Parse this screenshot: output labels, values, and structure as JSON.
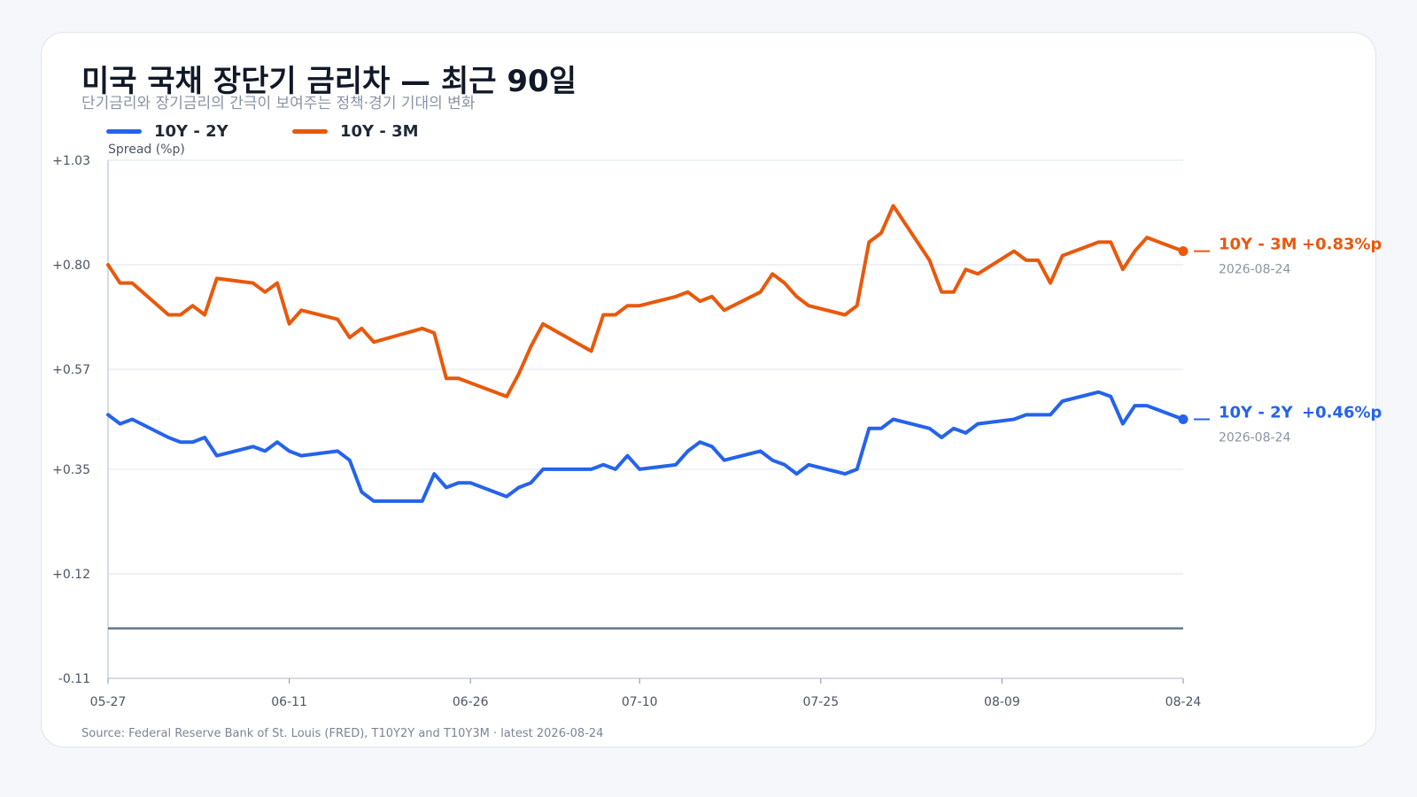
{
  "title": "미국 국채 장단기 금리차 — 최근 90일",
  "subtitle": "단기금리와 장기금리의 간극이 보여주는 정책·경기 기대의 변화",
  "source": "Source: Federal Reserve Bank of St. Louis (FRED), T10Y2Y and T10Y3M · latest 2026-08-24",
  "legend": [
    {
      "label": "10Y - 2Y",
      "color": "#2563eb"
    },
    {
      "label": "10Y - 3M",
      "color": "#e8590c"
    }
  ],
  "end_labels": [
    {
      "name": "10Y - 2Y",
      "value": "+0.46%p",
      "date": "2026-08-24",
      "color": "#2563eb"
    },
    {
      "name": "10Y - 3M",
      "value": "+0.83%p",
      "date": "2026-08-24",
      "color": "#e8590c"
    }
  ],
  "chart_data": {
    "type": "line",
    "ylabel": "Spread (%p)",
    "ylim": [
      -0.11,
      1.03
    ],
    "yticks": [
      "+1.03",
      "+0.80",
      "+0.57",
      "+0.35",
      "+0.12",
      "-0.11"
    ],
    "ytick_values": [
      1.03,
      0.8,
      0.57,
      0.35,
      0.12,
      -0.11
    ],
    "xlim": [
      "2026-05-27",
      "2026-08-24"
    ],
    "xticks": [
      "05-27",
      "06-11",
      "06-26",
      "07-10",
      "07-25",
      "08-09",
      "08-24"
    ],
    "xtick_dates": [
      "2026-05-27",
      "2026-06-11",
      "2026-06-26",
      "2026-07-10",
      "2026-07-25",
      "2026-08-09",
      "2026-08-24"
    ],
    "reference_line": 0.0,
    "grid": true,
    "legend_position": "top-left",
    "series": [
      {
        "name": "10Y - 2Y",
        "color": "#2563eb",
        "points": [
          [
            "2026-05-27",
            0.47
          ],
          [
            "2026-05-28",
            0.45
          ],
          [
            "2026-05-29",
            0.46
          ],
          [
            "2026-06-01",
            0.42
          ],
          [
            "2026-06-02",
            0.41
          ],
          [
            "2026-06-03",
            0.41
          ],
          [
            "2026-06-04",
            0.42
          ],
          [
            "2026-06-05",
            0.38
          ],
          [
            "2026-06-08",
            0.4
          ],
          [
            "2026-06-09",
            0.39
          ],
          [
            "2026-06-10",
            0.41
          ],
          [
            "2026-06-11",
            0.39
          ],
          [
            "2026-06-12",
            0.38
          ],
          [
            "2026-06-15",
            0.39
          ],
          [
            "2026-06-16",
            0.37
          ],
          [
            "2026-06-17",
            0.3
          ],
          [
            "2026-06-18",
            0.28
          ],
          [
            "2026-06-22",
            0.28
          ],
          [
            "2026-06-23",
            0.34
          ],
          [
            "2026-06-24",
            0.31
          ],
          [
            "2026-06-25",
            0.32
          ],
          [
            "2026-06-26",
            0.32
          ],
          [
            "2026-06-29",
            0.29
          ],
          [
            "2026-06-30",
            0.31
          ],
          [
            "2026-07-01",
            0.32
          ],
          [
            "2026-07-02",
            0.35
          ],
          [
            "2026-07-06",
            0.35
          ],
          [
            "2026-07-07",
            0.36
          ],
          [
            "2026-07-08",
            0.35
          ],
          [
            "2026-07-09",
            0.38
          ],
          [
            "2026-07-10",
            0.35
          ],
          [
            "2026-07-13",
            0.36
          ],
          [
            "2026-07-14",
            0.39
          ],
          [
            "2026-07-15",
            0.41
          ],
          [
            "2026-07-16",
            0.4
          ],
          [
            "2026-07-17",
            0.37
          ],
          [
            "2026-07-20",
            0.39
          ],
          [
            "2026-07-21",
            0.37
          ],
          [
            "2026-07-22",
            0.36
          ],
          [
            "2026-07-23",
            0.34
          ],
          [
            "2026-07-24",
            0.36
          ],
          [
            "2026-07-27",
            0.34
          ],
          [
            "2026-07-28",
            0.35
          ],
          [
            "2026-07-29",
            0.44
          ],
          [
            "2026-07-30",
            0.44
          ],
          [
            "2026-07-31",
            0.46
          ],
          [
            "2026-08-03",
            0.44
          ],
          [
            "2026-08-04",
            0.42
          ],
          [
            "2026-08-05",
            0.44
          ],
          [
            "2026-08-06",
            0.43
          ],
          [
            "2026-08-07",
            0.45
          ],
          [
            "2026-08-10",
            0.46
          ],
          [
            "2026-08-11",
            0.47
          ],
          [
            "2026-08-12",
            0.47
          ],
          [
            "2026-08-13",
            0.47
          ],
          [
            "2026-08-14",
            0.5
          ],
          [
            "2026-08-17",
            0.52
          ],
          [
            "2026-08-18",
            0.51
          ],
          [
            "2026-08-19",
            0.45
          ],
          [
            "2026-08-20",
            0.49
          ],
          [
            "2026-08-21",
            0.49
          ],
          [
            "2026-08-24",
            0.46
          ]
        ]
      },
      {
        "name": "10Y - 3M",
        "color": "#e8590c",
        "points": [
          [
            "2026-05-27",
            0.8
          ],
          [
            "2026-05-28",
            0.76
          ],
          [
            "2026-05-29",
            0.76
          ],
          [
            "2026-06-01",
            0.69
          ],
          [
            "2026-06-02",
            0.69
          ],
          [
            "2026-06-03",
            0.71
          ],
          [
            "2026-06-04",
            0.69
          ],
          [
            "2026-06-05",
            0.77
          ],
          [
            "2026-06-08",
            0.76
          ],
          [
            "2026-06-09",
            0.74
          ],
          [
            "2026-06-10",
            0.76
          ],
          [
            "2026-06-11",
            0.67
          ],
          [
            "2026-06-12",
            0.7
          ],
          [
            "2026-06-15",
            0.68
          ],
          [
            "2026-06-16",
            0.64
          ],
          [
            "2026-06-17",
            0.66
          ],
          [
            "2026-06-18",
            0.63
          ],
          [
            "2026-06-22",
            0.66
          ],
          [
            "2026-06-23",
            0.65
          ],
          [
            "2026-06-24",
            0.55
          ],
          [
            "2026-06-25",
            0.55
          ],
          [
            "2026-06-26",
            0.54
          ],
          [
            "2026-06-29",
            0.51
          ],
          [
            "2026-06-30",
            0.56
          ],
          [
            "2026-07-01",
            0.62
          ],
          [
            "2026-07-02",
            0.67
          ],
          [
            "2026-07-06",
            0.61
          ],
          [
            "2026-07-07",
            0.69
          ],
          [
            "2026-07-08",
            0.69
          ],
          [
            "2026-07-09",
            0.71
          ],
          [
            "2026-07-10",
            0.71
          ],
          [
            "2026-07-13",
            0.73
          ],
          [
            "2026-07-14",
            0.74
          ],
          [
            "2026-07-15",
            0.72
          ],
          [
            "2026-07-16",
            0.73
          ],
          [
            "2026-07-17",
            0.7
          ],
          [
            "2026-07-20",
            0.74
          ],
          [
            "2026-07-21",
            0.78
          ],
          [
            "2026-07-22",
            0.76
          ],
          [
            "2026-07-23",
            0.73
          ],
          [
            "2026-07-24",
            0.71
          ],
          [
            "2026-07-27",
            0.69
          ],
          [
            "2026-07-28",
            0.71
          ],
          [
            "2026-07-29",
            0.85
          ],
          [
            "2026-07-30",
            0.87
          ],
          [
            "2026-07-31",
            0.93
          ],
          [
            "2026-08-03",
            0.81
          ],
          [
            "2026-08-04",
            0.74
          ],
          [
            "2026-08-05",
            0.74
          ],
          [
            "2026-08-06",
            0.79
          ],
          [
            "2026-08-07",
            0.78
          ],
          [
            "2026-08-10",
            0.83
          ],
          [
            "2026-08-11",
            0.81
          ],
          [
            "2026-08-12",
            0.81
          ],
          [
            "2026-08-13",
            0.76
          ],
          [
            "2026-08-14",
            0.82
          ],
          [
            "2026-08-17",
            0.85
          ],
          [
            "2026-08-18",
            0.85
          ],
          [
            "2026-08-19",
            0.79
          ],
          [
            "2026-08-20",
            0.83
          ],
          [
            "2026-08-21",
            0.86
          ],
          [
            "2026-08-24",
            0.83
          ]
        ]
      }
    ]
  }
}
